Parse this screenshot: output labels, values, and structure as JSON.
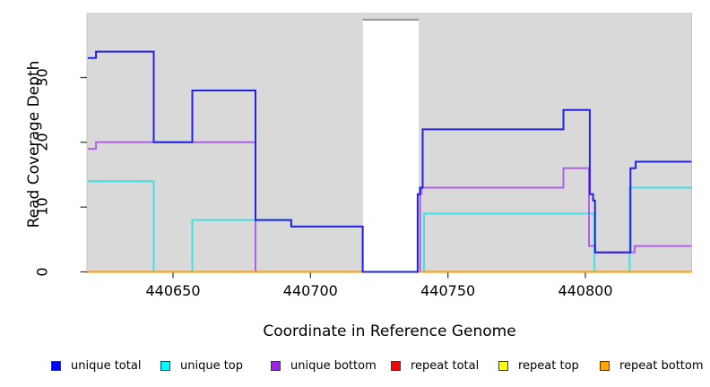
{
  "chart_data": {
    "type": "line",
    "subtype": "step",
    "title": "",
    "xlabel": "Coordinate in Reference Genome",
    "ylabel": "Read Coverage Depth",
    "xlim": [
      440619,
      440838.6
    ],
    "ylim": [
      0,
      39.8
    ],
    "x_ticks": [
      440650,
      440700,
      440750,
      440800
    ],
    "y_ticks": [
      0,
      10,
      20,
      30
    ],
    "grid": false,
    "panel_bg": "#d9d9d9",
    "masked_region": {
      "from": 440719.1,
      "to": 440739.4,
      "fill": "#ffffff",
      "cap_color": "#969696"
    },
    "legend_position": "bottom",
    "series": [
      {
        "name": "repeat total",
        "line_color": "#ee2222",
        "draw_order": 1,
        "segments": [
          {
            "points": [
              [
                440619,
                0
              ]
            ],
            "end": 440719.1
          },
          {
            "points": [
              [
                440739.4,
                0
              ]
            ],
            "end": 440838.6
          }
        ]
      },
      {
        "name": "repeat top",
        "line_color": "#f5f500",
        "draw_order": 2,
        "segments": [
          {
            "points": [
              [
                440619,
                0
              ]
            ],
            "end": 440719.1
          },
          {
            "points": [
              [
                440739.4,
                0
              ]
            ],
            "end": 440838.6
          }
        ]
      },
      {
        "name": "unique top",
        "line_color": "#44e0e4",
        "draw_order": 3,
        "segments": [
          {
            "points": [
              [
                440619,
                14
              ],
              [
                440643,
                0
              ],
              [
                440657,
                8
              ],
              [
                440680,
                8
              ],
              [
                440693,
                7
              ],
              [
                440719,
                0
              ],
              [
                440741.3,
                9
              ],
              [
                440803.3,
                0
              ],
              [
                440816.1,
                13
              ]
            ],
            "end": 440838.6
          }
        ]
      },
      {
        "name": "unique bottom",
        "line_color": "#ad62e6",
        "draw_order": 4,
        "segments": [
          {
            "points": [
              [
                440619,
                19
              ],
              [
                440622,
                20
              ],
              [
                440680,
                0
              ],
              [
                440739.9,
                12
              ],
              [
                440740.4,
                13
              ],
              [
                440792,
                16
              ],
              [
                440801.3,
                4
              ],
              [
                440803.6,
                3
              ],
              [
                440817.9,
                4
              ]
            ],
            "end": 440838.6
          }
        ]
      },
      {
        "name": "repeat bottom",
        "line_color": "#ff9e00",
        "draw_order": 5,
        "segments": [
          {
            "points": [
              [
                440619,
                0
              ]
            ],
            "end": 440719.1
          },
          {
            "points": [
              [
                440739.4,
                0
              ]
            ],
            "end": 440838.6
          }
        ]
      },
      {
        "name": "unique total",
        "line_color": "#2222e6",
        "draw_order": 6,
        "segments": [
          {
            "points": [
              [
                440619,
                33
              ],
              [
                440622,
                34
              ],
              [
                440643,
                20
              ],
              [
                440657,
                28
              ],
              [
                440680,
                8
              ],
              [
                440693,
                7
              ],
              [
                440719,
                0
              ],
              [
                440739,
                12
              ],
              [
                440739.8,
                13
              ],
              [
                440740.8,
                22
              ],
              [
                440792,
                25
              ],
              [
                440801.6,
                12
              ],
              [
                440802.8,
                11
              ],
              [
                440803.5,
                3
              ],
              [
                440816.4,
                16
              ],
              [
                440818.3,
                17
              ]
            ],
            "end": 440838.6
          }
        ]
      }
    ]
  },
  "legend": [
    {
      "label": "unique total",
      "swatch_color": "#0000ff"
    },
    {
      "label": "unique top",
      "swatch_color": "#00ffff"
    },
    {
      "label": "unique bottom",
      "swatch_color": "#a020f0"
    },
    {
      "label": "repeat total",
      "swatch_color": "#ff0000"
    },
    {
      "label": "repeat top",
      "swatch_color": "#ffff00"
    },
    {
      "label": "repeat bottom",
      "swatch_color": "#ffa500"
    }
  ],
  "axis": {
    "tick_color": "#404040",
    "x_tick_labels": [
      "440650",
      "440700",
      "440750",
      "440800"
    ],
    "y_tick_labels": [
      "0",
      "10",
      "20",
      "30"
    ]
  }
}
